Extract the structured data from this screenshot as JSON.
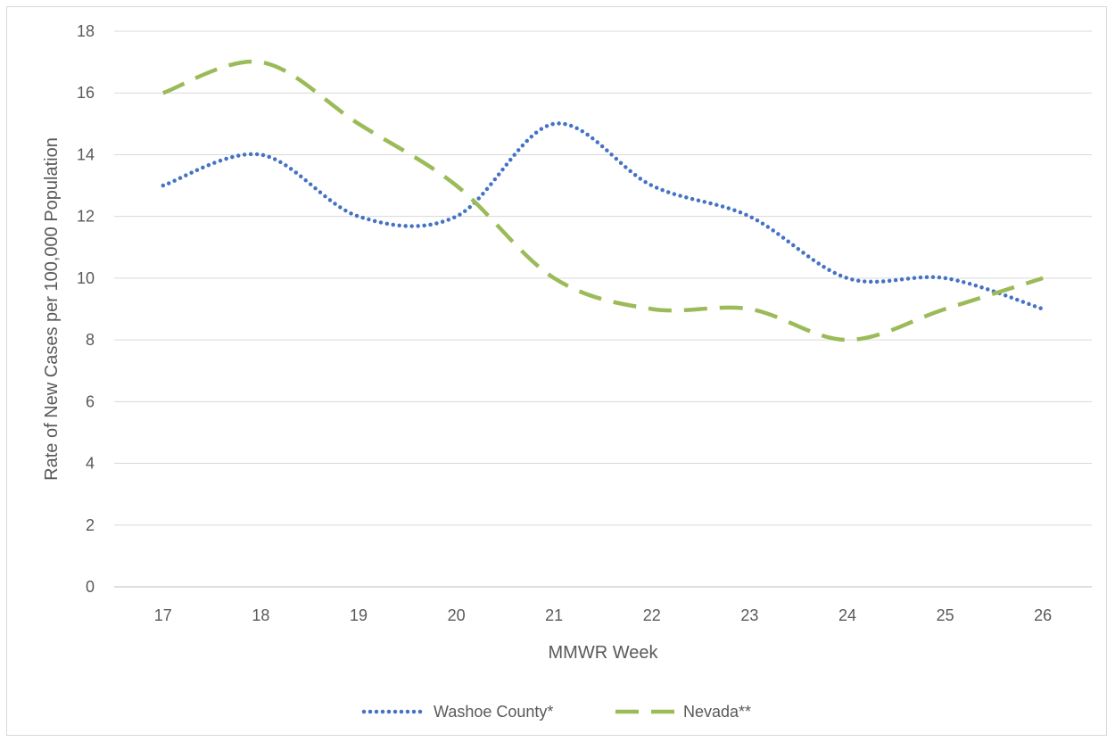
{
  "chart_data": {
    "type": "line",
    "title": "",
    "xlabel": "MMWR Week",
    "ylabel": "Rate of New Cases per 100,000 Population",
    "categories": [
      "17",
      "18",
      "19",
      "20",
      "21",
      "22",
      "23",
      "24",
      "25",
      "26"
    ],
    "ylim": [
      0,
      18
    ],
    "yticks": [
      0,
      2,
      4,
      6,
      8,
      10,
      12,
      14,
      16,
      18
    ],
    "grid": true,
    "smooth": true,
    "legend": "bottom",
    "series": [
      {
        "name": "Washoe County*",
        "values": [
          13,
          14,
          12,
          12,
          15,
          13,
          12,
          10,
          10,
          9
        ],
        "color": "#4472C4",
        "style": "dotted"
      },
      {
        "name": "Nevada**",
        "values": [
          16,
          17,
          15,
          13,
          10,
          9,
          9,
          8,
          9,
          10
        ],
        "color": "#9BBB59",
        "style": "dashed"
      }
    ]
  }
}
